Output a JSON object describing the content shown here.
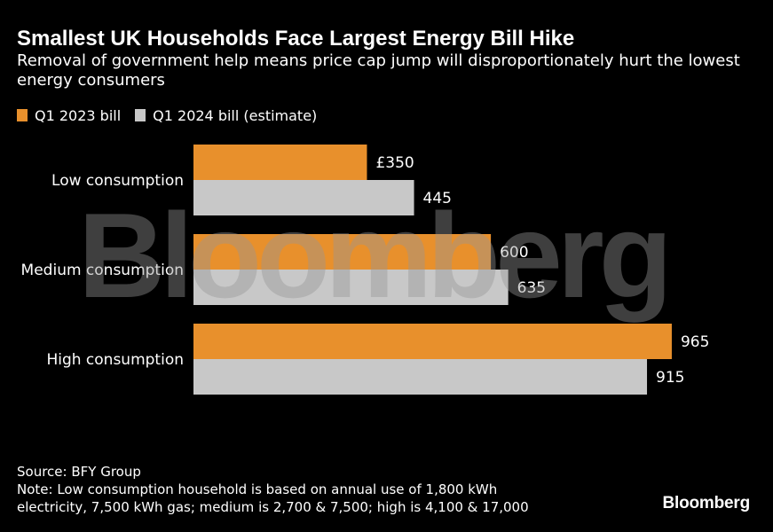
{
  "title": "Smallest UK Households Face Largest Energy Bill Hike",
  "subtitle": "Removal of government help means price cap jump will disproportionately hurt the lowest energy consumers",
  "legend": [
    {
      "label": "Q1 2023 bill",
      "color": "#E8902C"
    },
    {
      "label": "Q1 2024 bill (estimate)",
      "color": "#C8C8C8"
    }
  ],
  "chart_data": {
    "type": "bar",
    "orientation": "horizontal",
    "categories": [
      "Low consumption",
      "Medium consumption",
      "High consumption"
    ],
    "series": [
      {
        "name": "Q1 2023 bill",
        "color": "#E8902C",
        "values": [
          350,
          600,
          965
        ],
        "labels": [
          "£350",
          "600",
          "965"
        ]
      },
      {
        "name": "Q1 2024 bill (estimate)",
        "color": "#C8C8C8",
        "values": [
          445,
          635,
          915
        ],
        "labels": [
          "445",
          "635",
          "915"
        ]
      }
    ],
    "xlim": [
      0,
      1000
    ],
    "grid": false,
    "legend_position": "top-left"
  },
  "footer": {
    "source": "Source: BFY Group",
    "note_line1": "Note: Low consumption household is based on annual use of 1,800 kWh",
    "note_line2": "electricity, 7,500 kWh gas; medium is 2,700 & 7,500; high is 4,100 & 17,000"
  },
  "logo": "Bloomberg",
  "watermark": "Bloomberg"
}
